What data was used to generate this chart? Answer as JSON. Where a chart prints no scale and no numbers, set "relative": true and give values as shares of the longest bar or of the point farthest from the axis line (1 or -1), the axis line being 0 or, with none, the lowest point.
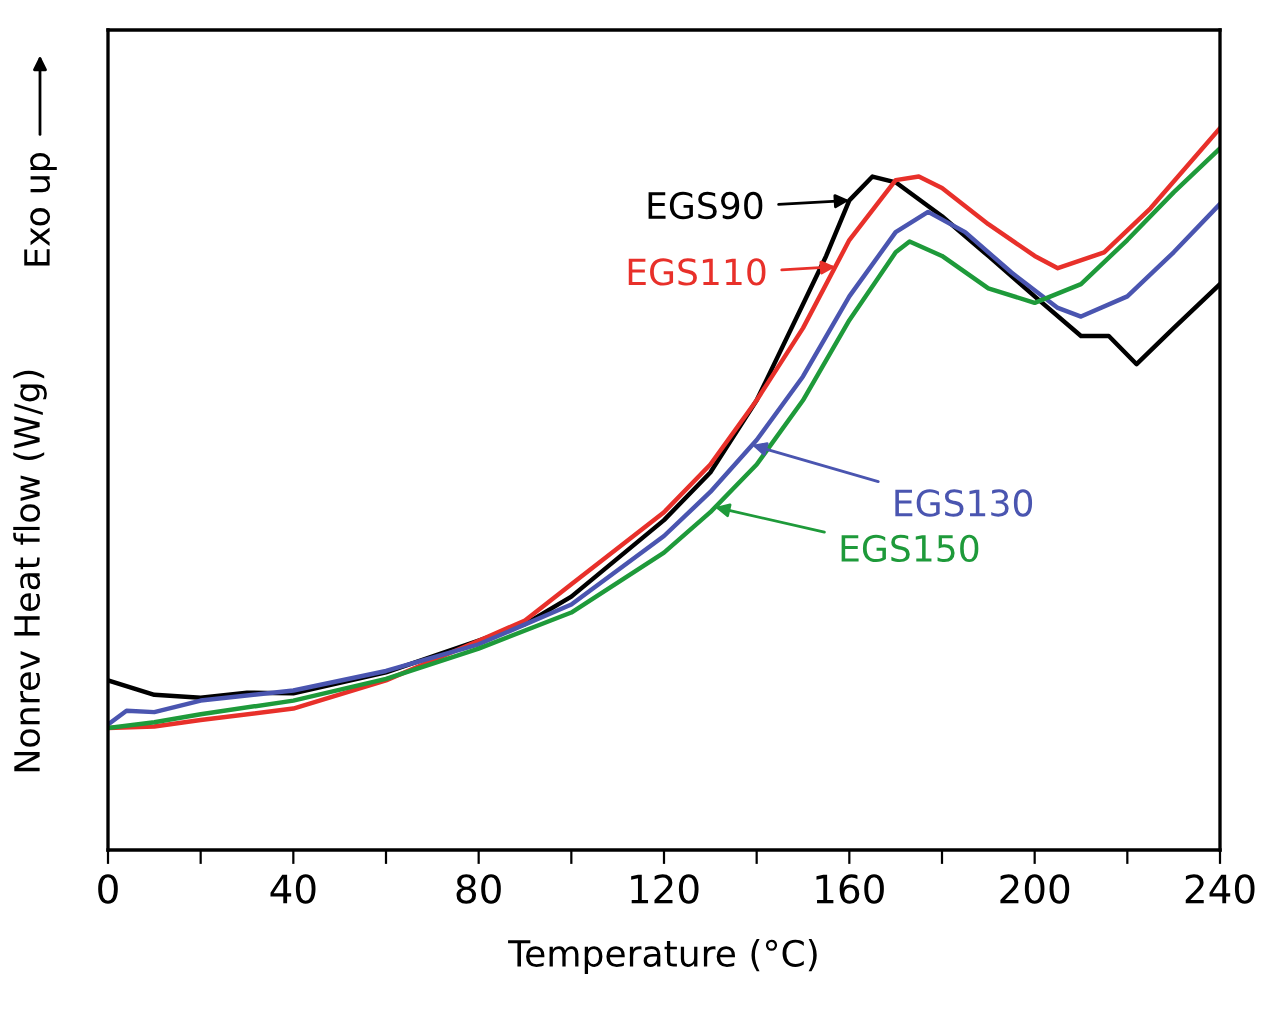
{
  "chart_data": {
    "type": "line",
    "relative": true,
    "xlabel": "Temperature (°C)",
    "ylabel": "Nonrev Heat flow (W/g)",
    "xlim": [
      0,
      240
    ],
    "xticks": [
      0,
      {
        "value": 20,
        "label": null
      },
      40,
      {
        "value": 60,
        "label": null
      },
      80,
      {
        "value": 100,
        "label": null
      },
      120,
      {
        "value": 140,
        "label": null
      },
      160,
      {
        "value": 180,
        "label": null
      },
      200,
      {
        "value": 220,
        "label": null
      },
      240
    ],
    "grid": false,
    "marker": "none",
    "line_style": "solid",
    "series": [
      {
        "color": "#000000",
        "x": [
          0,
          10,
          20,
          30,
          40,
          60,
          80,
          90,
          100,
          120,
          130,
          140,
          150,
          155,
          160,
          165,
          170,
          180,
          190,
          200,
          210,
          216,
          222,
          230,
          240
        ],
        "values": [
          0.235,
          0.215,
          0.211,
          0.218,
          0.217,
          0.246,
          0.29,
          0.313,
          0.351,
          0.457,
          0.523,
          0.623,
          0.756,
          0.823,
          0.9,
          0.933,
          0.925,
          0.878,
          0.823,
          0.767,
          0.712,
          0.712,
          0.673,
          0.723,
          0.784
        ]
      },
      {
        "color": "#e8302a",
        "x": [
          0,
          10,
          20,
          40,
          60,
          80,
          90,
          100,
          120,
          130,
          140,
          150,
          160,
          170,
          175,
          180,
          190,
          200,
          205,
          215,
          225,
          240
        ],
        "values": [
          0.169,
          0.171,
          0.18,
          0.196,
          0.235,
          0.29,
          0.318,
          0.368,
          0.468,
          0.534,
          0.623,
          0.723,
          0.845,
          0.928,
          0.933,
          0.917,
          0.867,
          0.823,
          0.806,
          0.828,
          0.889,
          1.0
        ]
      },
      {
        "color": "#4a55b0",
        "x": [
          0,
          4,
          10,
          20,
          40,
          60,
          80,
          100,
          120,
          130,
          140,
          150,
          160,
          170,
          177,
          185,
          195,
          205,
          210,
          220,
          230,
          240
        ],
        "values": [
          0.174,
          0.193,
          0.191,
          0.207,
          0.221,
          0.248,
          0.285,
          0.34,
          0.435,
          0.496,
          0.568,
          0.656,
          0.767,
          0.856,
          0.884,
          0.856,
          0.8,
          0.751,
          0.739,
          0.767,
          0.828,
          0.895
        ]
      },
      {
        "color": "#1e9a3a",
        "x": [
          0,
          10,
          20,
          40,
          60,
          80,
          100,
          120,
          130,
          140,
          150,
          160,
          170,
          173,
          180,
          190,
          200,
          210,
          220,
          230,
          240
        ],
        "values": [
          0.169,
          0.177,
          0.188,
          0.207,
          0.237,
          0.279,
          0.329,
          0.412,
          0.468,
          0.534,
          0.623,
          0.734,
          0.828,
          0.843,
          0.823,
          0.778,
          0.758,
          0.784,
          0.845,
          0.911,
          0.972
        ]
      }
    ],
    "annotations": [
      {
        "text": "EGS90",
        "x": 160,
        "y": 0.9
      },
      {
        "text": "EGS110",
        "x": 157,
        "y": 0.808
      },
      {
        "text": "EGS130",
        "x": 139,
        "y": 0.561
      },
      {
        "text": "EGS150",
        "x": 131,
        "y": 0.475
      },
      "Exo up"
    ]
  }
}
